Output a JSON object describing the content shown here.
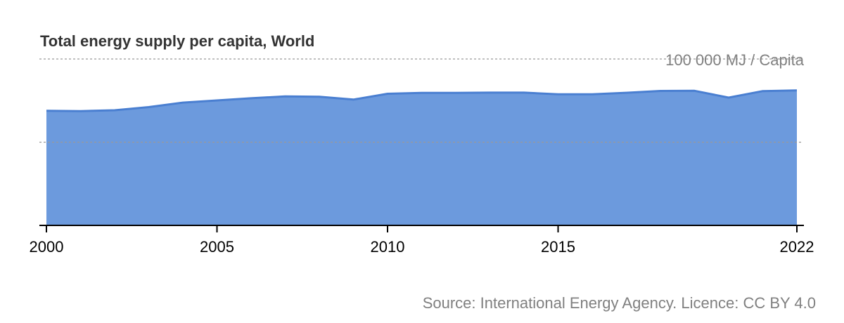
{
  "title": "Total energy supply per capita, World",
  "source": "Source: International Energy Agency. Licence: CC BY 4.0",
  "colors": {
    "area": "#6c9add",
    "line": "#4a7fd1",
    "grid": "#999999",
    "axis": "#000000"
  },
  "chart_data": {
    "type": "area",
    "title": "Total energy supply per capita, World",
    "xlabel": "",
    "ylabel": "",
    "unit_label": "100 000 MJ / Capita",
    "x": [
      2000,
      2001,
      2002,
      2003,
      2004,
      2005,
      2006,
      2007,
      2008,
      2009,
      2010,
      2011,
      2012,
      2013,
      2014,
      2015,
      2016,
      2017,
      2018,
      2019,
      2020,
      2021,
      2022
    ],
    "series": [
      {
        "name": "",
        "values": [
          68900,
          68700,
          69200,
          71100,
          73800,
          75100,
          76400,
          77500,
          77300,
          75600,
          79100,
          79600,
          79600,
          79800,
          79800,
          78800,
          78800,
          79700,
          80800,
          80900,
          76800,
          80700,
          81100
        ]
      }
    ],
    "xlim": [
      2000,
      2022
    ],
    "ylim": [
      0,
      100000
    ],
    "x_ticks": [
      "2000",
      "2005",
      "2010",
      "2015",
      "2022"
    ],
    "y_gridlines": [
      50000,
      100000
    ],
    "grid": "horizontal-dotted"
  }
}
